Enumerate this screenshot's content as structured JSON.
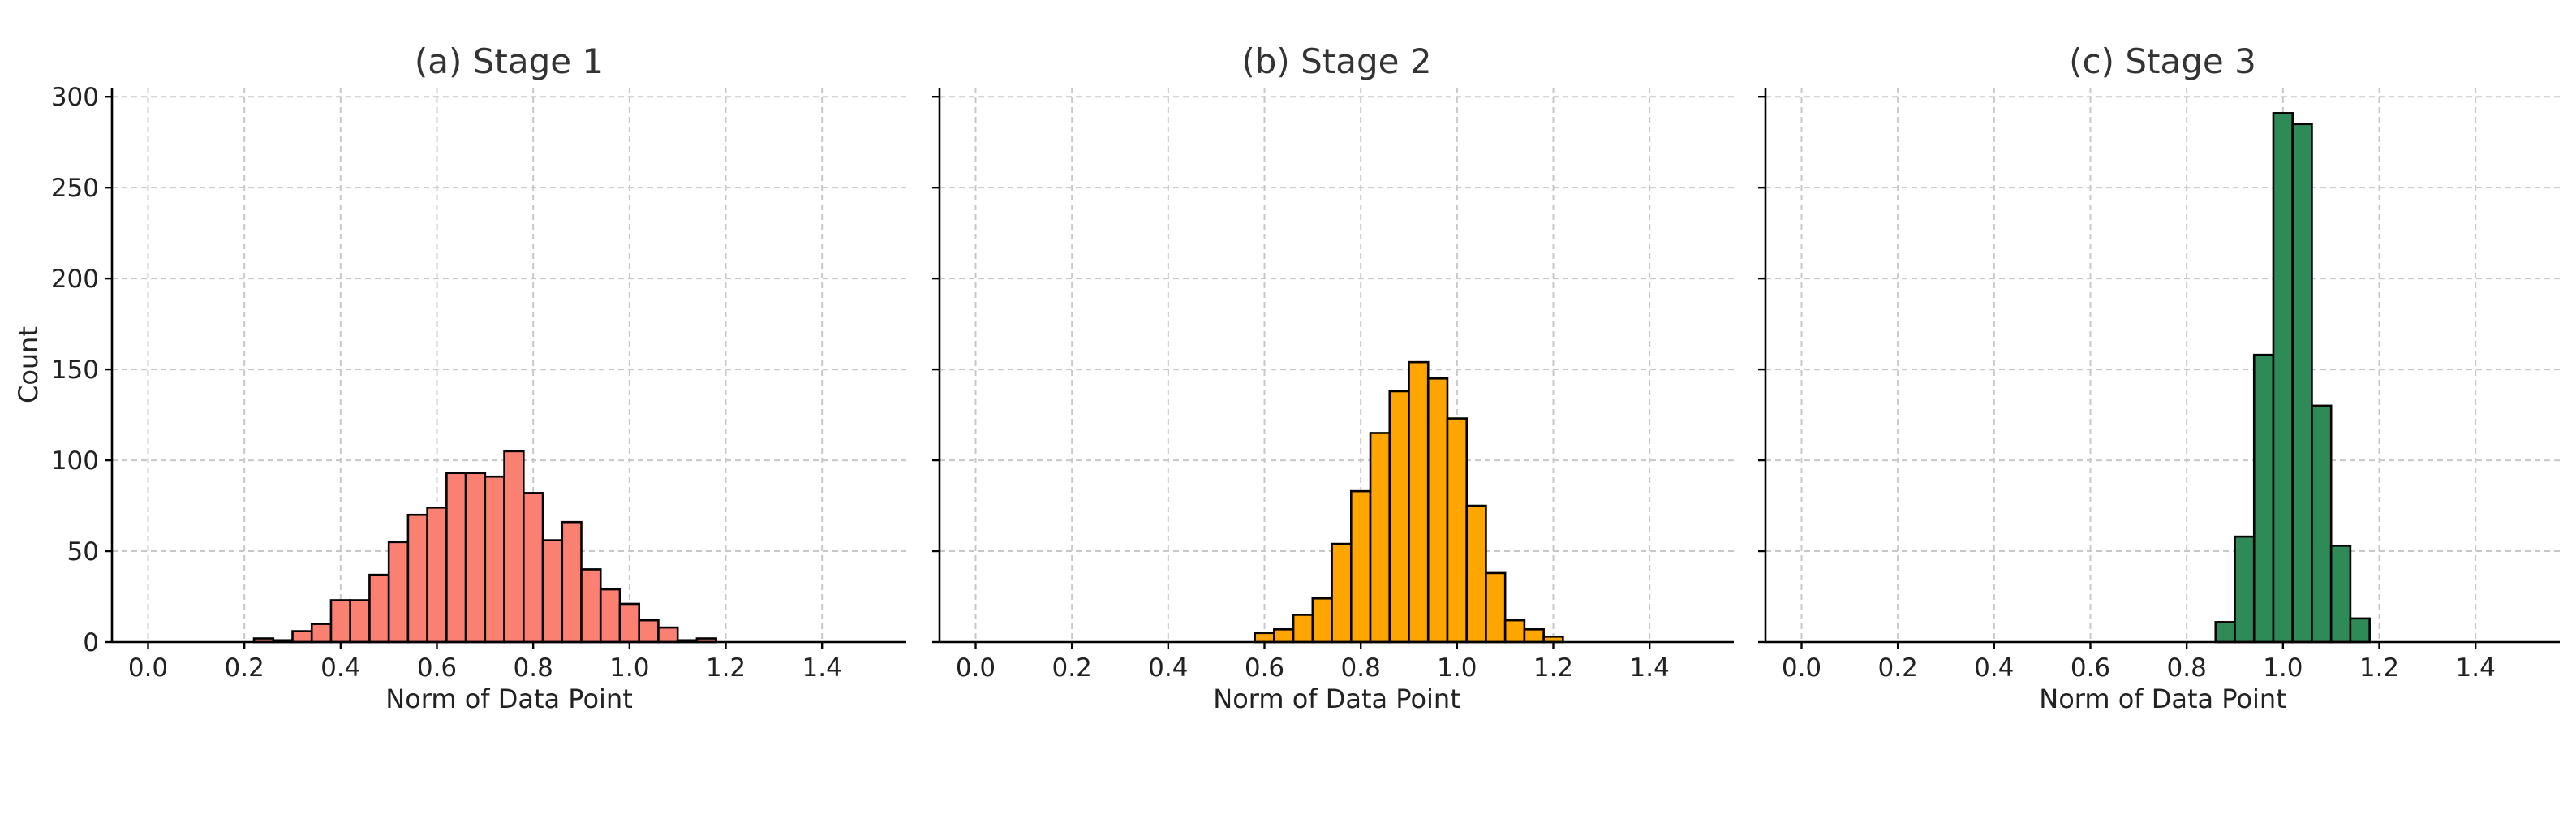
{
  "chart_data": [
    {
      "type": "bar",
      "title": "(a) Stage 1",
      "xlabel": "Norm of Data Point",
      "ylabel": "Count",
      "xlim": [
        -0.075,
        1.575
      ],
      "ylim": [
        0,
        305
      ],
      "xticks": [
        0.0,
        0.2,
        0.4,
        0.6,
        0.8,
        1.0,
        1.2,
        1.4
      ],
      "yticks": [
        0,
        50,
        100,
        150,
        200,
        250,
        300
      ],
      "grid": true,
      "color": "#fa8072",
      "bin_width": 0.04,
      "bin_starts": [
        0.22,
        0.26,
        0.3,
        0.34,
        0.38,
        0.42,
        0.46,
        0.5,
        0.54,
        0.58,
        0.62,
        0.66,
        0.7,
        0.74,
        0.78,
        0.82,
        0.86,
        0.9,
        0.94,
        0.98,
        1.02,
        1.06,
        1.1,
        1.14
      ],
      "values": [
        2,
        1,
        6,
        10,
        23,
        23,
        37,
        55,
        70,
        74,
        93,
        93,
        91,
        105,
        82,
        56,
        66,
        40,
        29,
        21,
        12,
        8,
        1,
        2
      ]
    },
    {
      "type": "bar",
      "title": "(b) Stage 2",
      "xlabel": "Norm of Data Point",
      "ylabel": "",
      "xlim": [
        -0.075,
        1.575
      ],
      "ylim": [
        0,
        305
      ],
      "xticks": [
        0.0,
        0.2,
        0.4,
        0.6,
        0.8,
        1.0,
        1.2,
        1.4
      ],
      "yticks": [
        0,
        50,
        100,
        150,
        200,
        250,
        300
      ],
      "grid": true,
      "color": "#ffa500",
      "bin_width": 0.04,
      "bin_starts": [
        0.58,
        0.62,
        0.66,
        0.7,
        0.74,
        0.78,
        0.82,
        0.86,
        0.9,
        0.94,
        0.98,
        1.02,
        1.06,
        1.1,
        1.14,
        1.18
      ],
      "values": [
        5,
        7,
        15,
        24,
        54,
        83,
        115,
        138,
        154,
        145,
        123,
        75,
        38,
        12,
        7,
        3
      ]
    },
    {
      "type": "bar",
      "title": "(c) Stage 3",
      "xlabel": "Norm of Data Point",
      "ylabel": "",
      "xlim": [
        -0.075,
        1.575
      ],
      "ylim": [
        0,
        305
      ],
      "xticks": [
        0.0,
        0.2,
        0.4,
        0.6,
        0.8,
        1.0,
        1.2,
        1.4
      ],
      "yticks": [
        0,
        50,
        100,
        150,
        200,
        250,
        300
      ],
      "grid": true,
      "color": "#2e8b57",
      "bin_width": 0.04,
      "bin_starts": [
        0.86,
        0.9,
        0.94,
        0.98,
        1.02,
        1.06,
        1.1,
        1.14
      ],
      "values": [
        11,
        58,
        158,
        291,
        285,
        130,
        53,
        13
      ]
    }
  ]
}
